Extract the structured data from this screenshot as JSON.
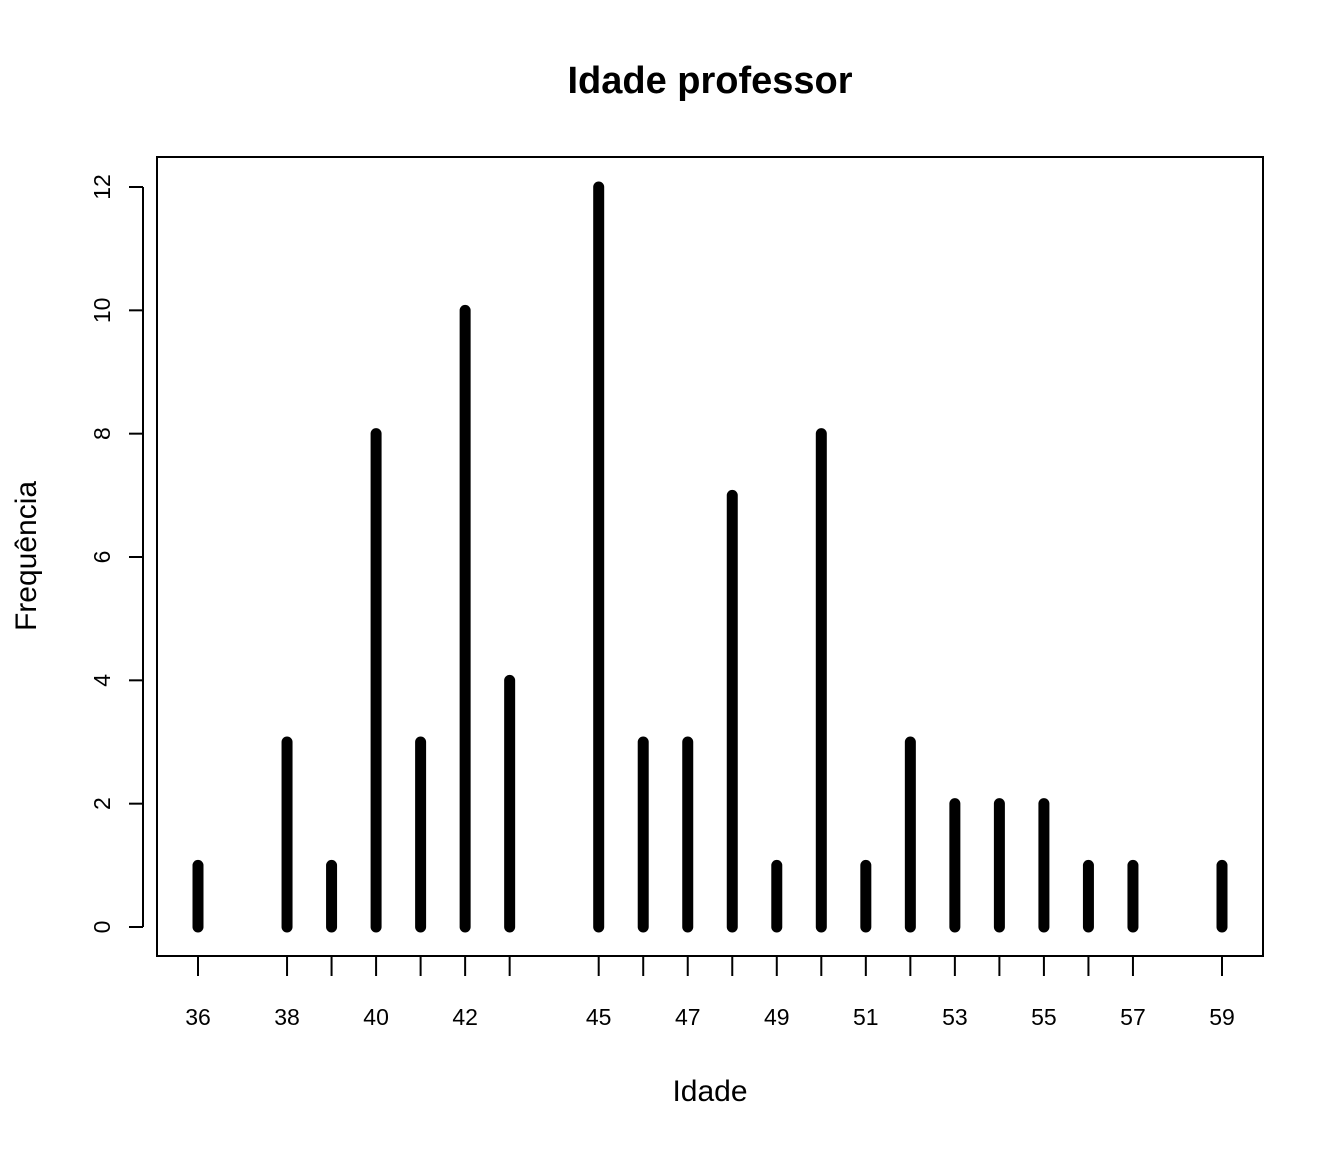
{
  "chart_data": {
    "type": "bar",
    "title": "Idade professor",
    "xlabel": "Idade",
    "ylabel": "Frequência",
    "categories": [
      36,
      38,
      39,
      40,
      41,
      42,
      43,
      45,
      46,
      47,
      48,
      49,
      50,
      51,
      52,
      53,
      54,
      55,
      56,
      57,
      59
    ],
    "values": [
      1,
      3,
      1,
      8,
      3,
      10,
      4,
      12,
      3,
      3,
      7,
      1,
      8,
      1,
      3,
      2,
      2,
      2,
      1,
      1,
      1
    ],
    "x_tick_labels": [
      36,
      38,
      40,
      42,
      45,
      47,
      49,
      51,
      53,
      55,
      57,
      59
    ],
    "y_ticks": [
      0,
      2,
      4,
      6,
      8,
      10,
      12
    ],
    "ylim": [
      0,
      12
    ],
    "grid": false,
    "bar_color": "#000000"
  }
}
